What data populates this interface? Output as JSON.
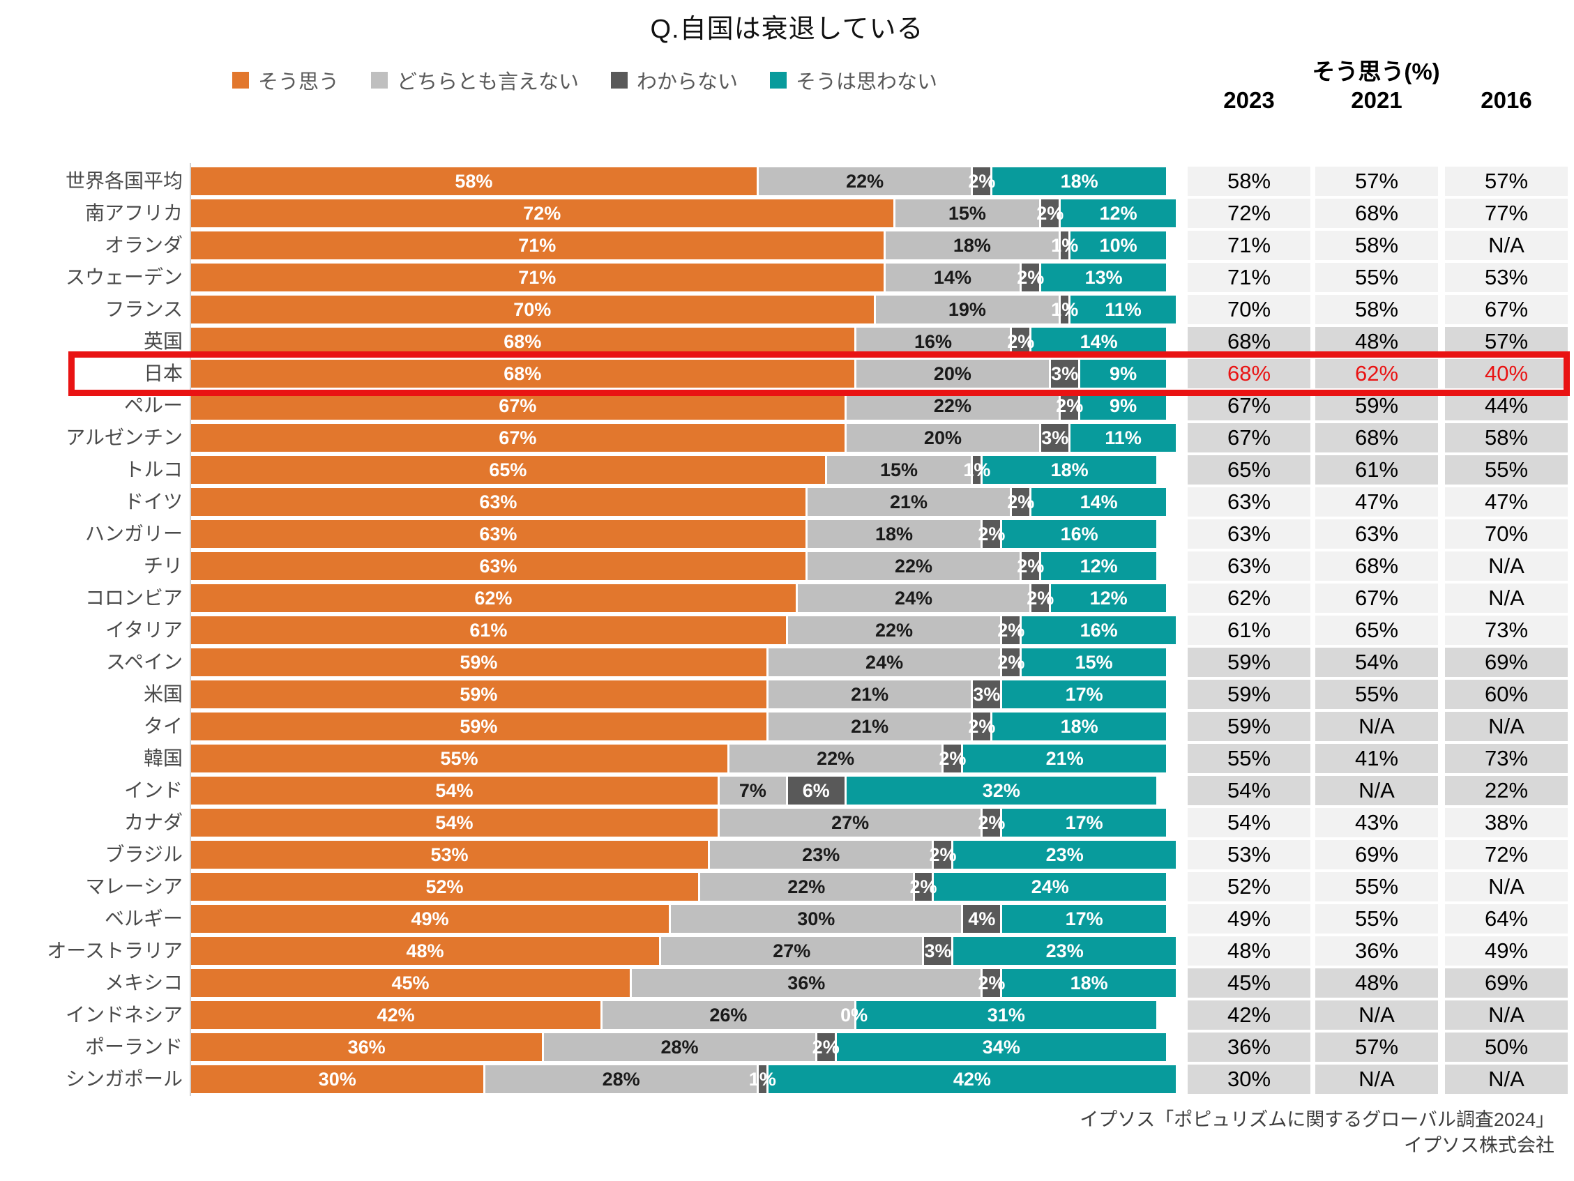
{
  "title": "Q.自国は衰退している",
  "legend": [
    {
      "label": "そう思う",
      "color": "#e2772d"
    },
    {
      "label": "どちらとも言えない",
      "color": "#bfbfbf"
    },
    {
      "label": "わからない",
      "color": "#595959"
    },
    {
      "label": "そうは思わない",
      "color": "#089b9c"
    }
  ],
  "colors": {
    "agree": "#e2772d",
    "neither": "#bfbfbf",
    "dontknow": "#595959",
    "disagree": "#089b9c",
    "cell_light": "#f2f2f2",
    "cell_dark": "#d8d8d8",
    "highlight_red": "#e91313"
  },
  "table": {
    "group_header": "そう思う(%)",
    "year_columns": [
      "2023",
      "2021",
      "2016"
    ]
  },
  "highlight": {
    "country": "日本",
    "box_color": "#e91313",
    "text_color": "#e91313"
  },
  "source": {
    "line1": "イプソス「ポピュリズムに関するグローバル調査2024」",
    "line2": "イプソス株式会社"
  },
  "chart_data": {
    "type": "bar",
    "orientation": "horizontal",
    "stacked": true,
    "xlim": [
      0,
      100
    ],
    "series_names": [
      "そう思う",
      "どちらとも言えない",
      "わからない",
      "そうは思わない"
    ],
    "rows": [
      {
        "country": "世界各国平均",
        "values": [
          58,
          22,
          2,
          18
        ],
        "seg_labels": [
          "58%",
          "22%",
          "2%",
          "18%"
        ],
        "table": [
          "58%",
          "57%",
          "57%"
        ]
      },
      {
        "country": "南アフリカ",
        "values": [
          72,
          15,
          2,
          12
        ],
        "seg_labels": [
          "72%",
          "15%",
          "2%",
          "12%"
        ],
        "table": [
          "72%",
          "68%",
          "77%"
        ]
      },
      {
        "country": "オランダ",
        "values": [
          71,
          18,
          1,
          10
        ],
        "seg_labels": [
          "71%",
          "18%",
          "1%",
          "10%"
        ],
        "table": [
          "71%",
          "58%",
          "N/A"
        ]
      },
      {
        "country": "スウェーデン",
        "values": [
          71,
          14,
          2,
          13
        ],
        "seg_labels": [
          "71%",
          "14%",
          "2%",
          "13%"
        ],
        "table": [
          "71%",
          "55%",
          "53%"
        ]
      },
      {
        "country": "フランス",
        "values": [
          70,
          19,
          1,
          11
        ],
        "seg_labels": [
          "70%",
          "19%",
          "1%",
          "11%"
        ],
        "table": [
          "70%",
          "58%",
          "67%"
        ]
      },
      {
        "country": "英国",
        "values": [
          68,
          16,
          2,
          14
        ],
        "seg_labels": [
          "68%",
          "16%",
          "2%",
          "14%"
        ],
        "table": [
          "68%",
          "48%",
          "57%"
        ]
      },
      {
        "country": "日本",
        "values": [
          68,
          20,
          3,
          9
        ],
        "seg_labels": [
          "68%",
          "20%",
          "3%",
          "9%"
        ],
        "table": [
          "68%",
          "62%",
          "40%"
        ]
      },
      {
        "country": "ペルー",
        "values": [
          67,
          22,
          2,
          9
        ],
        "seg_labels": [
          "67%",
          "22%",
          "2%",
          "9%"
        ],
        "table": [
          "67%",
          "59%",
          "44%"
        ]
      },
      {
        "country": "アルゼンチン",
        "values": [
          67,
          20,
          3,
          11
        ],
        "seg_labels": [
          "67%",
          "20%",
          "3%",
          "11%"
        ],
        "table": [
          "67%",
          "68%",
          "58%"
        ]
      },
      {
        "country": "トルコ",
        "values": [
          65,
          15,
          1,
          18
        ],
        "seg_labels": [
          "65%",
          "15%",
          "1%",
          "18%"
        ],
        "table": [
          "65%",
          "61%",
          "55%"
        ]
      },
      {
        "country": "ドイツ",
        "values": [
          63,
          21,
          2,
          14
        ],
        "seg_labels": [
          "63%",
          "21%",
          "2%",
          "14%"
        ],
        "table": [
          "63%",
          "47%",
          "47%"
        ]
      },
      {
        "country": "ハンガリー",
        "values": [
          63,
          18,
          2,
          16
        ],
        "seg_labels": [
          "63%",
          "18%",
          "2%",
          "16%"
        ],
        "table": [
          "63%",
          "63%",
          "70%"
        ]
      },
      {
        "country": "チリ",
        "values": [
          63,
          22,
          2,
          12
        ],
        "seg_labels": [
          "63%",
          "22%",
          "2%",
          "12%"
        ],
        "table": [
          "63%",
          "68%",
          "N/A"
        ]
      },
      {
        "country": "コロンビア",
        "values": [
          62,
          24,
          2,
          12
        ],
        "seg_labels": [
          "62%",
          "24%",
          "2%",
          "12%"
        ],
        "table": [
          "62%",
          "67%",
          "N/A"
        ]
      },
      {
        "country": "イタリア",
        "values": [
          61,
          22,
          2,
          16
        ],
        "seg_labels": [
          "61%",
          "22%",
          "2%",
          "16%"
        ],
        "table": [
          "61%",
          "65%",
          "73%"
        ]
      },
      {
        "country": "スペイン",
        "values": [
          59,
          24,
          2,
          15
        ],
        "seg_labels": [
          "59%",
          "24%",
          "2%",
          "15%"
        ],
        "table": [
          "59%",
          "54%",
          "69%"
        ]
      },
      {
        "country": "米国",
        "values": [
          59,
          21,
          3,
          17
        ],
        "seg_labels": [
          "59%",
          "21%",
          "3%",
          "17%"
        ],
        "table": [
          "59%",
          "55%",
          "60%"
        ]
      },
      {
        "country": "タイ",
        "values": [
          59,
          21,
          2,
          18
        ],
        "seg_labels": [
          "59%",
          "21%",
          "2%",
          "18%"
        ],
        "table": [
          "59%",
          "N/A",
          "N/A"
        ]
      },
      {
        "country": "韓国",
        "values": [
          55,
          22,
          2,
          21
        ],
        "seg_labels": [
          "55%",
          "22%",
          "2%",
          "21%"
        ],
        "table": [
          "55%",
          "41%",
          "73%"
        ]
      },
      {
        "country": "インド",
        "values": [
          54,
          7,
          6,
          32
        ],
        "seg_labels": [
          "54%",
          "7%",
          "6%",
          "32%"
        ],
        "table": [
          "54%",
          "N/A",
          "22%"
        ]
      },
      {
        "country": "カナダ",
        "values": [
          54,
          27,
          2,
          17
        ],
        "seg_labels": [
          "54%",
          "27%",
          "2%",
          "17%"
        ],
        "table": [
          "54%",
          "43%",
          "38%"
        ]
      },
      {
        "country": "ブラジル",
        "values": [
          53,
          23,
          2,
          23
        ],
        "seg_labels": [
          "53%",
          "23%",
          "2%",
          "23%"
        ],
        "table": [
          "53%",
          "69%",
          "72%"
        ]
      },
      {
        "country": "マレーシア",
        "values": [
          52,
          22,
          2,
          24
        ],
        "seg_labels": [
          "52%",
          "22%",
          "2%",
          "24%"
        ],
        "table": [
          "52%",
          "55%",
          "N/A"
        ]
      },
      {
        "country": "ベルギー",
        "values": [
          49,
          30,
          4,
          17
        ],
        "seg_labels": [
          "49%",
          "30%",
          "4%",
          "17%"
        ],
        "table": [
          "49%",
          "55%",
          "64%"
        ]
      },
      {
        "country": "オーストラリア",
        "values": [
          48,
          27,
          3,
          23
        ],
        "seg_labels": [
          "48%",
          "27%",
          "3%",
          "23%"
        ],
        "table": [
          "48%",
          "36%",
          "49%"
        ]
      },
      {
        "country": "メキシコ",
        "values": [
          45,
          36,
          2,
          18
        ],
        "seg_labels": [
          "45%",
          "36%",
          "2%",
          "18%"
        ],
        "table": [
          "45%",
          "48%",
          "69%"
        ]
      },
      {
        "country": "インドネシア",
        "values": [
          42,
          26,
          0,
          31
        ],
        "seg_labels": [
          "42%",
          "26%",
          "0%",
          "31%"
        ],
        "table": [
          "42%",
          "N/A",
          "N/A"
        ]
      },
      {
        "country": "ポーランド",
        "values": [
          36,
          28,
          2,
          34
        ],
        "seg_labels": [
          "36%",
          "28%",
          "2%",
          "34%"
        ],
        "table": [
          "36%",
          "57%",
          "50%"
        ]
      },
      {
        "country": "シンガポール",
        "values": [
          30,
          28,
          1,
          42
        ],
        "seg_labels": [
          "30%",
          "28%",
          "1%",
          "42%"
        ],
        "table": [
          "30%",
          "N/A",
          "N/A"
        ]
      }
    ]
  }
}
